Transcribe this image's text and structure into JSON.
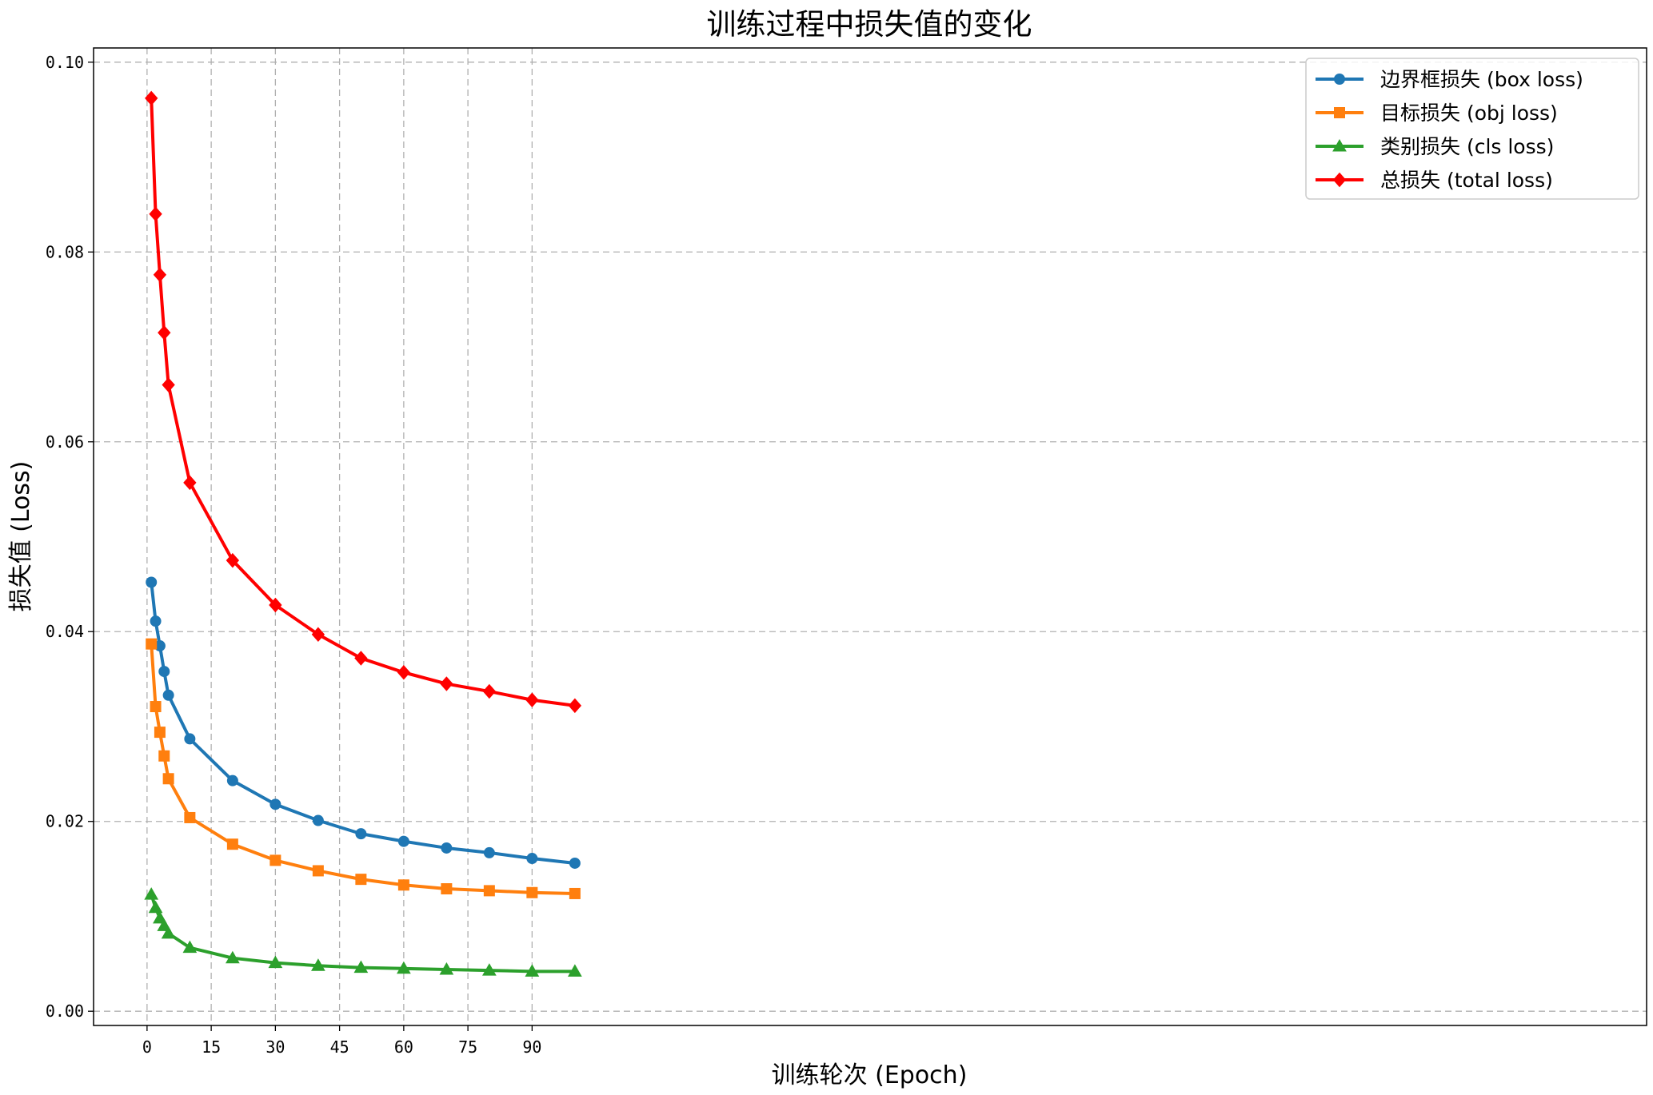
{
  "chart_data": {
    "type": "line",
    "title": "训练过程中损失值的变化",
    "xlabel": "训练轮次 (Epoch)",
    "ylabel": "损失值 (Loss)",
    "xlim": [
      -12.5,
      350.5
    ],
    "ylim": [
      -0.0015,
      0.1015
    ],
    "xticks": [
      0,
      15,
      30,
      45,
      60,
      75,
      90
    ],
    "yticks": [
      0.0,
      0.02,
      0.04,
      0.06,
      0.08,
      0.1
    ],
    "ytick_labels": [
      "0.00",
      "0.02",
      "0.04",
      "0.06",
      "0.08",
      "0.10"
    ],
    "grid": true,
    "legend_position": "upper right",
    "x": [
      1,
      2,
      3,
      4,
      5,
      10,
      20,
      30,
      40,
      50,
      60,
      70,
      80,
      90,
      100
    ],
    "series": [
      {
        "name": "边界框损失 (box loss)",
        "color": "#1f77b4",
        "marker": "circle",
        "values": [
          0.0452,
          0.0411,
          0.0385,
          0.0358,
          0.0333,
          0.0287,
          0.0243,
          0.0218,
          0.0201,
          0.0187,
          0.0179,
          0.0172,
          0.0167,
          0.0161,
          0.0156
        ]
      },
      {
        "name": "目标损失 (obj loss)",
        "color": "#ff7f0e",
        "marker": "square",
        "values": [
          0.0387,
          0.0321,
          0.0294,
          0.0269,
          0.0245,
          0.0204,
          0.0176,
          0.0159,
          0.0148,
          0.0139,
          0.0133,
          0.0129,
          0.0127,
          0.0125,
          0.0124
        ]
      },
      {
        "name": "类别损失 (cls loss)",
        "color": "#2ca02c",
        "marker": "triangle",
        "values": [
          0.0123,
          0.0109,
          0.0098,
          0.009,
          0.0082,
          0.0067,
          0.0056,
          0.0051,
          0.0048,
          0.0046,
          0.0045,
          0.0044,
          0.0043,
          0.0042,
          0.0042
        ]
      },
      {
        "name": "总损失 (total loss)",
        "color": "#ff0000",
        "marker": "diamond",
        "values": [
          0.0962,
          0.084,
          0.0776,
          0.0715,
          0.066,
          0.0557,
          0.0475,
          0.0428,
          0.0397,
          0.0372,
          0.0357,
          0.0345,
          0.0337,
          0.0328,
          0.0322
        ]
      }
    ]
  }
}
